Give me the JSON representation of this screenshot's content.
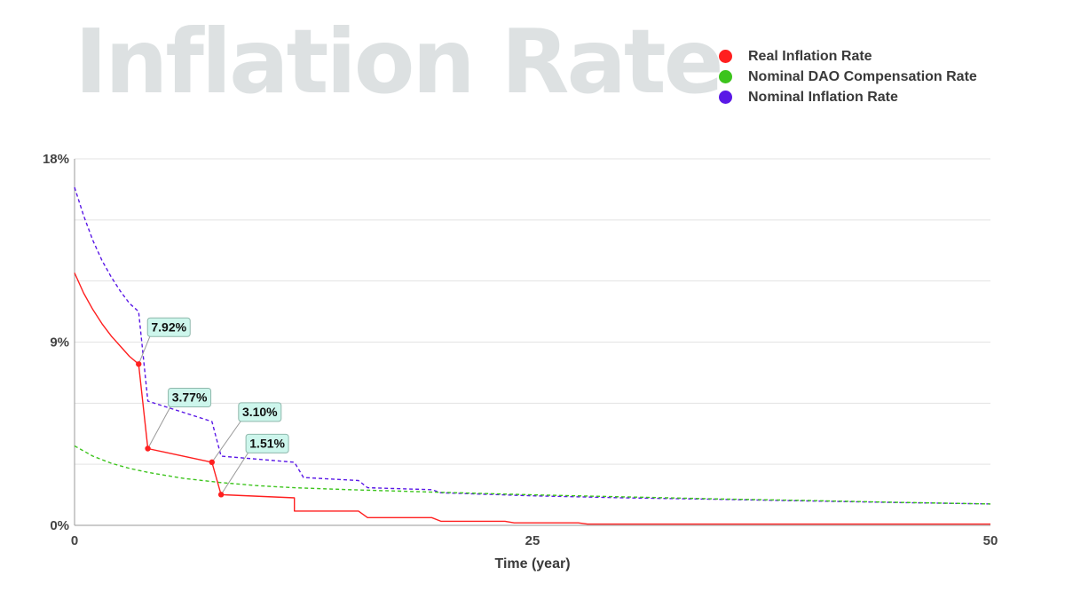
{
  "chart_data": {
    "type": "line",
    "title": "Inflation Rate",
    "xlabel": "Time (year)",
    "ylabel": "",
    "xlim": [
      0,
      50
    ],
    "ylim": [
      0,
      18
    ],
    "x_ticks": [
      "0",
      "25",
      "50"
    ],
    "y_ticks": [
      "0%",
      "9%",
      "18%"
    ],
    "grid": "horizontal",
    "legend_position": "top-right",
    "series": [
      {
        "name": "Real Inflation Rate",
        "color": "#ff1f1f",
        "style": "solid",
        "points": [
          [
            0,
            12.4
          ],
          [
            0.5,
            11.4
          ],
          [
            1,
            10.6
          ],
          [
            1.5,
            9.9
          ],
          [
            2,
            9.3
          ],
          [
            2.5,
            8.8
          ],
          [
            3,
            8.3
          ],
          [
            3.5,
            7.92
          ],
          [
            4,
            3.77
          ],
          [
            7.5,
            3.1
          ],
          [
            8,
            1.51
          ],
          [
            12,
            1.35
          ],
          [
            12,
            0.7
          ],
          [
            15.5,
            0.7
          ],
          [
            16,
            0.38
          ],
          [
            19.5,
            0.38
          ],
          [
            20,
            0.2
          ],
          [
            23.5,
            0.2
          ],
          [
            24,
            0.12
          ],
          [
            27.5,
            0.12
          ],
          [
            28,
            0.06
          ],
          [
            50,
            0.06
          ]
        ]
      },
      {
        "name": "Nominal DAO Compensation Rate",
        "color": "#3cc41c",
        "style": "dashed",
        "points": [
          [
            0,
            3.9
          ],
          [
            1,
            3.4
          ],
          [
            2,
            3.05
          ],
          [
            3,
            2.8
          ],
          [
            4,
            2.6
          ],
          [
            5,
            2.45
          ],
          [
            6,
            2.3
          ],
          [
            8,
            2.1
          ],
          [
            10,
            1.95
          ],
          [
            12,
            1.85
          ],
          [
            15,
            1.75
          ],
          [
            20,
            1.62
          ],
          [
            25,
            1.5
          ],
          [
            30,
            1.4
          ],
          [
            35,
            1.3
          ],
          [
            40,
            1.22
          ],
          [
            45,
            1.13
          ],
          [
            50,
            1.05
          ]
        ]
      },
      {
        "name": "Nominal Inflation Rate",
        "color": "#5a18e6",
        "style": "dashed",
        "points": [
          [
            0,
            16.6
          ],
          [
            0.5,
            15.2
          ],
          [
            1,
            14.0
          ],
          [
            1.5,
            13.0
          ],
          [
            2,
            12.2
          ],
          [
            2.5,
            11.5
          ],
          [
            3,
            10.9
          ],
          [
            3.5,
            10.5
          ],
          [
            4,
            6.1
          ],
          [
            7.5,
            5.1
          ],
          [
            8,
            3.4
          ],
          [
            12,
            3.1
          ],
          [
            12.5,
            2.35
          ],
          [
            15.5,
            2.2
          ],
          [
            16,
            1.85
          ],
          [
            19.5,
            1.75
          ],
          [
            20,
            1.6
          ],
          [
            25,
            1.45
          ],
          [
            30,
            1.35
          ],
          [
            35,
            1.28
          ],
          [
            40,
            1.2
          ],
          [
            45,
            1.12
          ],
          [
            50,
            1.05
          ]
        ]
      }
    ],
    "annotations": [
      {
        "label": "7.92%",
        "x": 3.5,
        "y": 7.92
      },
      {
        "label": "3.77%",
        "x": 4,
        "y": 3.77
      },
      {
        "label": "3.10%",
        "x": 7.5,
        "y": 3.1
      },
      {
        "label": "1.51%",
        "x": 8,
        "y": 1.51
      }
    ]
  }
}
